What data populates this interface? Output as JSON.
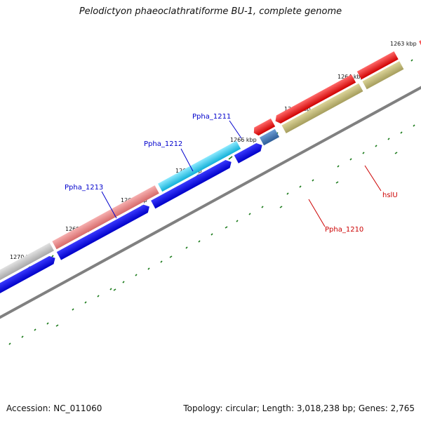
{
  "title": "Pelodictyon phaeoclathratiforme BU-1, complete genome",
  "footer": {
    "accession": "Accession: NC_011060",
    "summary": "Topology: circular; Length: 3,018,238 bp; Genes: 2,765"
  },
  "ticks": [
    {
      "label": "1263 kbp"
    },
    {
      "label": "1264 kbp"
    },
    {
      "label": "1265 kbp"
    },
    {
      "label": "1266 kbp"
    },
    {
      "label": "1267 kbp"
    },
    {
      "label": "1268 kbp"
    },
    {
      "label": "1269 kbp"
    },
    {
      "label": "1270 kbp"
    }
  ],
  "colors": {
    "backbone": "#808080",
    "tick": "#1a7a1a",
    "cds": "#0000ee",
    "forward_label": "#0000cc",
    "reverse_label": "#cc0000"
  },
  "features": [
    {
      "name": "Ppha_1213",
      "color": "#e88080",
      "strand": "forward",
      "label_color": "#0000cc"
    },
    {
      "name": "Ppha_1212",
      "color": "#27c6ee",
      "strand": "forward",
      "label_color": "#0000cc"
    },
    {
      "name": "Ppha_1211",
      "color": "#0000ee",
      "strand": "forward",
      "label_color": "#0000cc"
    },
    {
      "name": "Ppha_1210",
      "color": "#3a6ea8",
      "strand": "reverse",
      "label_color": "#cc0000"
    },
    {
      "name": "hslU",
      "color": "#b8b070",
      "strand": "reverse",
      "label_color": "#cc0000"
    }
  ]
}
